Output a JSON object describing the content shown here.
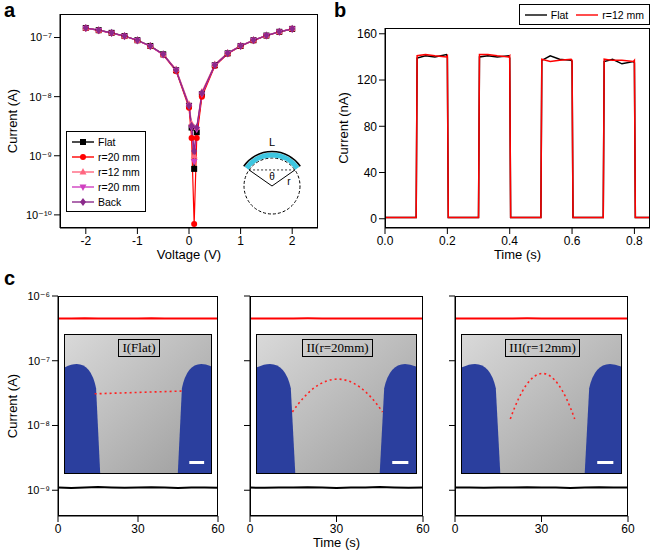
{
  "chart_data": [
    {
      "panel": "a",
      "type": "line",
      "x_label": "Voltage (V)",
      "y_label": "Current (A)",
      "log": "y",
      "xlim": [
        -2.5,
        2.5
      ],
      "xticks": [
        -2,
        -1,
        0,
        1,
        2
      ],
      "ylim": [
        6e-11,
        2.5e-07
      ],
      "yticks": [
        {
          "value": 1e-10,
          "label": "10⁻¹⁰"
        },
        {
          "value": 1e-09,
          "label": "10⁻⁹"
        },
        {
          "value": 1e-08,
          "label": "10⁻⁸"
        },
        {
          "value": 1e-07,
          "label": "10⁻⁷"
        }
      ],
      "legend": "lower left",
      "annotations": [
        "L",
        "θ",
        "r"
      ],
      "x": [
        -2,
        -1.75,
        -1.5,
        -1.25,
        -1,
        -0.75,
        -0.5,
        -0.25,
        0,
        0.05,
        0.1,
        0.15,
        0.25,
        0.5,
        0.75,
        1,
        1.25,
        1.5,
        1.75,
        2
      ],
      "series": [
        {
          "name": "Flat",
          "color": "#000000",
          "marker": "square",
          "values": [
            1.45e-07,
            1.33e-07,
            1.2e-07,
            1.06e-07,
            9e-08,
            7.2e-08,
            5.2e-08,
            2.8e-08,
            7e-09,
            3e-09,
            6e-10,
            2.5e-09,
            1.1e-08,
            3.4e-08,
            5.4e-08,
            7.2e-08,
            9e-08,
            1.08e-07,
            1.25e-07,
            1.4e-07
          ]
        },
        {
          "name": "r=20 mm",
          "color": "#ff0000",
          "marker": "circle",
          "values": [
            1.44e-07,
            1.32e-07,
            1.19e-07,
            1.05e-07,
            8.9e-08,
            7.1e-08,
            5.1e-08,
            2.7e-08,
            6.5e-09,
            2e-09,
            7e-11,
            2e-09,
            1e-08,
            3.3e-08,
            5.3e-08,
            7.1e-08,
            8.9e-08,
            1.07e-07,
            1.24e-07,
            1.39e-07
          ]
        },
        {
          "name": "r=12 mm",
          "color": "#ff6680",
          "marker": "triangle",
          "values": [
            1.45e-07,
            1.33e-07,
            1.2e-07,
            1.06e-07,
            9e-08,
            7.2e-08,
            5.2e-08,
            2.9e-08,
            7.5e-09,
            3.5e-09,
            1e-09,
            3e-09,
            1.2e-08,
            3.5e-08,
            5.5e-08,
            7.3e-08,
            9.1e-08,
            1.09e-07,
            1.26e-07,
            1.41e-07
          ]
        },
        {
          "name": "r=20 mm",
          "color": "#d040c0",
          "marker": "triangle-down",
          "values": [
            1.44e-07,
            1.32e-07,
            1.19e-07,
            1.05e-07,
            8.9e-08,
            7.1e-08,
            5.1e-08,
            2.8e-08,
            7e-09,
            3e-09,
            8e-10,
            2.8e-09,
            1.1e-08,
            3.4e-08,
            5.4e-08,
            7.2e-08,
            9e-08,
            1.08e-07,
            1.25e-07,
            1.4e-07
          ]
        },
        {
          "name": "Back",
          "color": "#8b2a8b",
          "marker": "diamond",
          "values": [
            1.45e-07,
            1.33e-07,
            1.2e-07,
            1.06e-07,
            9e-08,
            7.2e-08,
            5.2e-08,
            2.8e-08,
            7e-09,
            3.2e-09,
            1.2e-09,
            3e-09,
            1.15e-08,
            3.4e-08,
            5.4e-08,
            7.2e-08,
            9e-08,
            1.08e-07,
            1.25e-07,
            1.4e-07
          ]
        }
      ]
    },
    {
      "panel": "b",
      "type": "line",
      "x_label": "Time (s)",
      "y_label": "Current (nA)",
      "xlim": [
        0,
        0.85
      ],
      "xticks": [
        {
          "value": 0,
          "label": "0.0"
        },
        0.2,
        0.4,
        0.6,
        0.8
      ],
      "ylim": [
        -8,
        165
      ],
      "yticks": [
        0,
        40,
        80,
        120,
        160
      ],
      "legend": "upper right",
      "x": [
        0,
        0.05,
        0.1,
        0.103,
        0.13,
        0.16,
        0.197,
        0.2,
        0.203,
        0.25,
        0.3,
        0.303,
        0.33,
        0.36,
        0.397,
        0.4,
        0.403,
        0.45,
        0.5,
        0.503,
        0.53,
        0.56,
        0.597,
        0.6,
        0.603,
        0.65,
        0.7,
        0.703,
        0.73,
        0.76,
        0.797,
        0.8,
        0.803,
        0.85
      ],
      "series": [
        {
          "name": "Flat",
          "color": "#000000",
          "values": [
            1,
            1,
            1,
            139,
            141,
            140,
            142,
            140,
            1,
            1,
            1,
            140,
            141,
            140,
            141,
            139,
            1,
            1,
            1,
            137,
            141,
            138,
            137,
            136,
            1,
            1,
            1,
            136,
            138,
            134,
            136,
            135,
            1,
            1
          ]
        },
        {
          "name": "r=12 mm",
          "color": "#ff0000",
          "values": [
            1,
            1,
            1,
            141,
            142,
            141,
            140,
            141,
            1,
            1,
            1,
            142,
            142,
            141,
            140,
            141,
            1,
            1,
            1,
            138,
            136,
            137,
            138,
            137,
            1,
            1,
            1,
            138,
            137,
            137,
            136,
            137,
            1,
            1
          ]
        }
      ]
    },
    {
      "panel": "c",
      "type": "line",
      "y_label": "Current (A)",
      "log": "y",
      "inset_label": "I(Flat)",
      "xlim": [
        0,
        60
      ],
      "xticks": [
        0,
        30,
        60
      ],
      "ylim": [
        4e-10,
        1e-06
      ],
      "yticks": [
        {
          "value": 1e-09,
          "label": "10⁻⁹"
        },
        {
          "value": 1e-08,
          "label": "10⁻⁸"
        },
        {
          "value": 1e-07,
          "label": "10⁻⁷"
        },
        {
          "value": 1e-06,
          "label": "10⁻⁶"
        }
      ],
      "x": [
        0,
        5,
        10,
        15,
        20,
        25,
        30,
        35,
        40,
        45,
        50,
        55,
        60
      ],
      "series": [
        {
          "color": "#ff0000",
          "values": [
            4.5e-07,
            4.48e-07,
            4.52e-07,
            4.5e-07,
            4.49e-07,
            4.51e-07,
            4.5e-07,
            4.52e-07,
            4.48e-07,
            4.5e-07,
            4.51e-07,
            4.49e-07,
            4.5e-07
          ]
        },
        {
          "color": "#000000",
          "values": [
            1.1e-09,
            1.08e-09,
            1.1e-09,
            1.12e-09,
            1.1e-09,
            1.09e-09,
            1.1e-09,
            1.11e-09,
            1.1e-09,
            1.08e-09,
            1.1e-09,
            1.1e-09,
            1.09e-09
          ]
        }
      ]
    },
    {
      "type": "line",
      "x_label": "Time (s)",
      "log": "y",
      "inset_label": "II(r=20mm)",
      "tick_labels": "x",
      "xlim": [
        0,
        60
      ],
      "xticks": [
        0,
        30,
        60
      ],
      "ylim": [
        4e-10,
        1e-06
      ],
      "yticks": [
        {
          "value": 1e-09,
          "label": "10⁻⁹"
        },
        {
          "value": 1e-08,
          "label": "10⁻⁸"
        },
        {
          "value": 1e-07,
          "label": "10⁻⁷"
        },
        {
          "value": 1e-06,
          "label": "10⁻⁶"
        }
      ],
      "x": [
        0,
        5,
        10,
        15,
        20,
        25,
        30,
        35,
        40,
        45,
        50,
        55,
        60
      ],
      "series": [
        {
          "color": "#ff0000",
          "values": [
            4.5e-07,
            4.51e-07,
            4.49e-07,
            4.5e-07,
            4.52e-07,
            4.5e-07,
            4.48e-07,
            4.5e-07,
            4.51e-07,
            4.5e-07,
            4.49e-07,
            4.5e-07,
            4.51e-07
          ]
        },
        {
          "color": "#000000",
          "values": [
            1.1e-09,
            1.09e-09,
            1.1e-09,
            1.1e-09,
            1.11e-09,
            1.1e-09,
            1.08e-09,
            1.1e-09,
            1.1e-09,
            1.12e-09,
            1.1e-09,
            1.09e-09,
            1.1e-09
          ]
        }
      ]
    },
    {
      "type": "line",
      "log": "y",
      "inset_label": "III(r=12mm)",
      "tick_labels": "x",
      "xlim": [
        0,
        60
      ],
      "xticks": [
        0,
        30,
        60
      ],
      "ylim": [
        4e-10,
        1e-06
      ],
      "yticks": [
        {
          "value": 1e-09,
          "label": "10⁻⁹"
        },
        {
          "value": 1e-08,
          "label": "10⁻⁸"
        },
        {
          "value": 1e-07,
          "label": "10⁻⁷"
        },
        {
          "value": 1e-06,
          "label": "10⁻⁶"
        }
      ],
      "x": [
        0,
        5,
        10,
        15,
        20,
        25,
        30,
        35,
        40,
        45,
        50,
        55,
        60
      ],
      "series": [
        {
          "color": "#ff0000",
          "values": [
            4.5e-07,
            4.49e-07,
            4.5e-07,
            4.51e-07,
            4.5e-07,
            4.52e-07,
            4.5e-07,
            4.49e-07,
            4.5e-07,
            4.51e-07,
            4.5e-07,
            4.48e-07,
            4.5e-07
          ]
        },
        {
          "color": "#000000",
          "values": [
            1.1e-09,
            1.1e-09,
            1.09e-09,
            1.1e-09,
            1.1e-09,
            1.11e-09,
            1.1e-09,
            1.1e-09,
            1.08e-09,
            1.1e-09,
            1.11e-09,
            1.1e-09,
            1.1e-09
          ]
        }
      ]
    }
  ]
}
